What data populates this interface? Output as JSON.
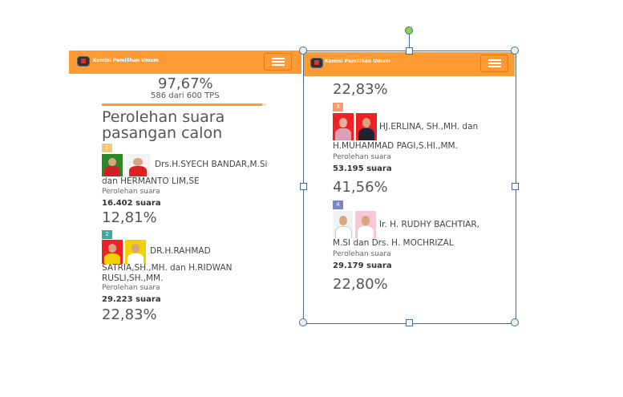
{
  "brand": "Komisi Pemilihan Umum",
  "summary": {
    "percent": "97,67%",
    "tps": "586 dari 600 TPS",
    "progress": 97.67
  },
  "heading_line1": "Perolehan suara",
  "heading_line2": "pasangan calon",
  "vote_label": "Perolehan suara",
  "colors": {
    "header": "#fd9a33",
    "badge1": "#f7c873",
    "badge2": "#3aa99f",
    "badge3": "#f79b6b",
    "badge4": "#7b86c9"
  },
  "candidates": [
    {
      "number": "1",
      "name_line1": "Drs.H.SYECH BANDAR,M.Si",
      "name_line2": "dan HERMANTO LIM,SE",
      "votes": "16.402 suara",
      "percent": "12,81%"
    },
    {
      "number": "2",
      "name_line1": "DR.H.RAHMAD",
      "name_line2": "SATRIA,SH.,MH. dan H.RIDWAN",
      "name_line3": "RUSLI,SH.,MM.",
      "votes": "29.223 suara",
      "percent": "22,83%"
    },
    {
      "number": "3",
      "name_line1": "HJ.ERLINA, SH.,MH. dan",
      "name_line2": "H.MUHAMMAD PAGI,S.HI.,MM.",
      "votes": "53.195 suara",
      "percent": "41,56%"
    },
    {
      "number": "4",
      "name_line1": "Ir. H. RUDHY BACHTIAR,",
      "name_line2": "M.SI dan Drs. H. MOCHRIZAL",
      "votes": "29.179 suara",
      "percent": "22,80%"
    }
  ]
}
